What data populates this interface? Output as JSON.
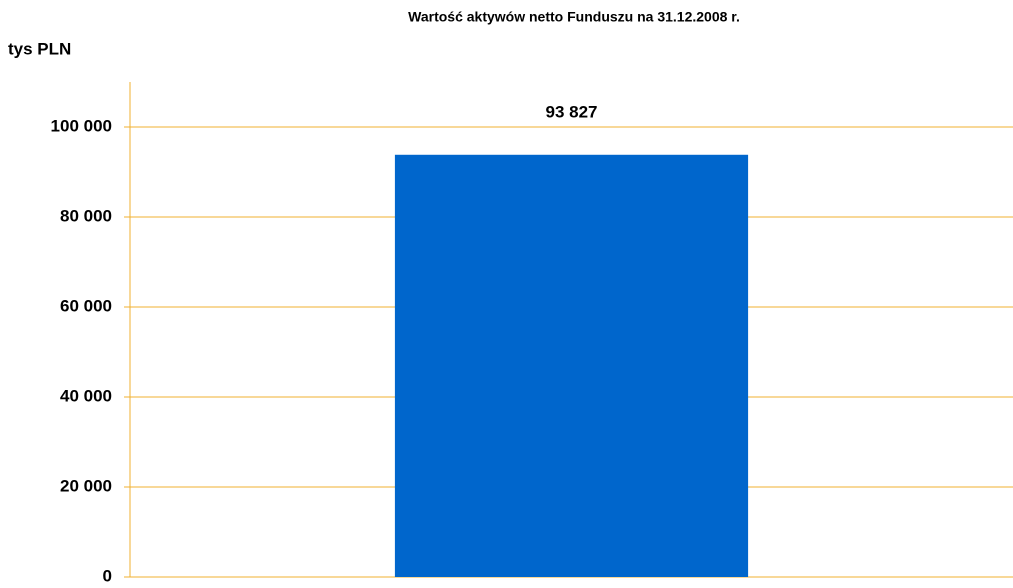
{
  "chart_data": {
    "type": "bar",
    "title": "Wartość aktywów netto Funduszu na 31.12.2008 r.",
    "y_label": "tys PLN",
    "categories": [
      null
    ],
    "values": [
      93827
    ],
    "value_labels": [
      "93 827"
    ],
    "color": "#0066cc",
    "ylim": [
      0,
      110000
    ],
    "yticks": [
      0,
      {
        "value": 20000,
        "label": "20 000"
      },
      {
        "value": 40000,
        "label": "40 000"
      },
      {
        "value": 60000,
        "label": "60 000"
      },
      {
        "value": 80000,
        "label": "80 000"
      },
      {
        "value": 100000,
        "label": "100 000"
      }
    ],
    "grid": true,
    "grid_color": "#f0b030"
  }
}
